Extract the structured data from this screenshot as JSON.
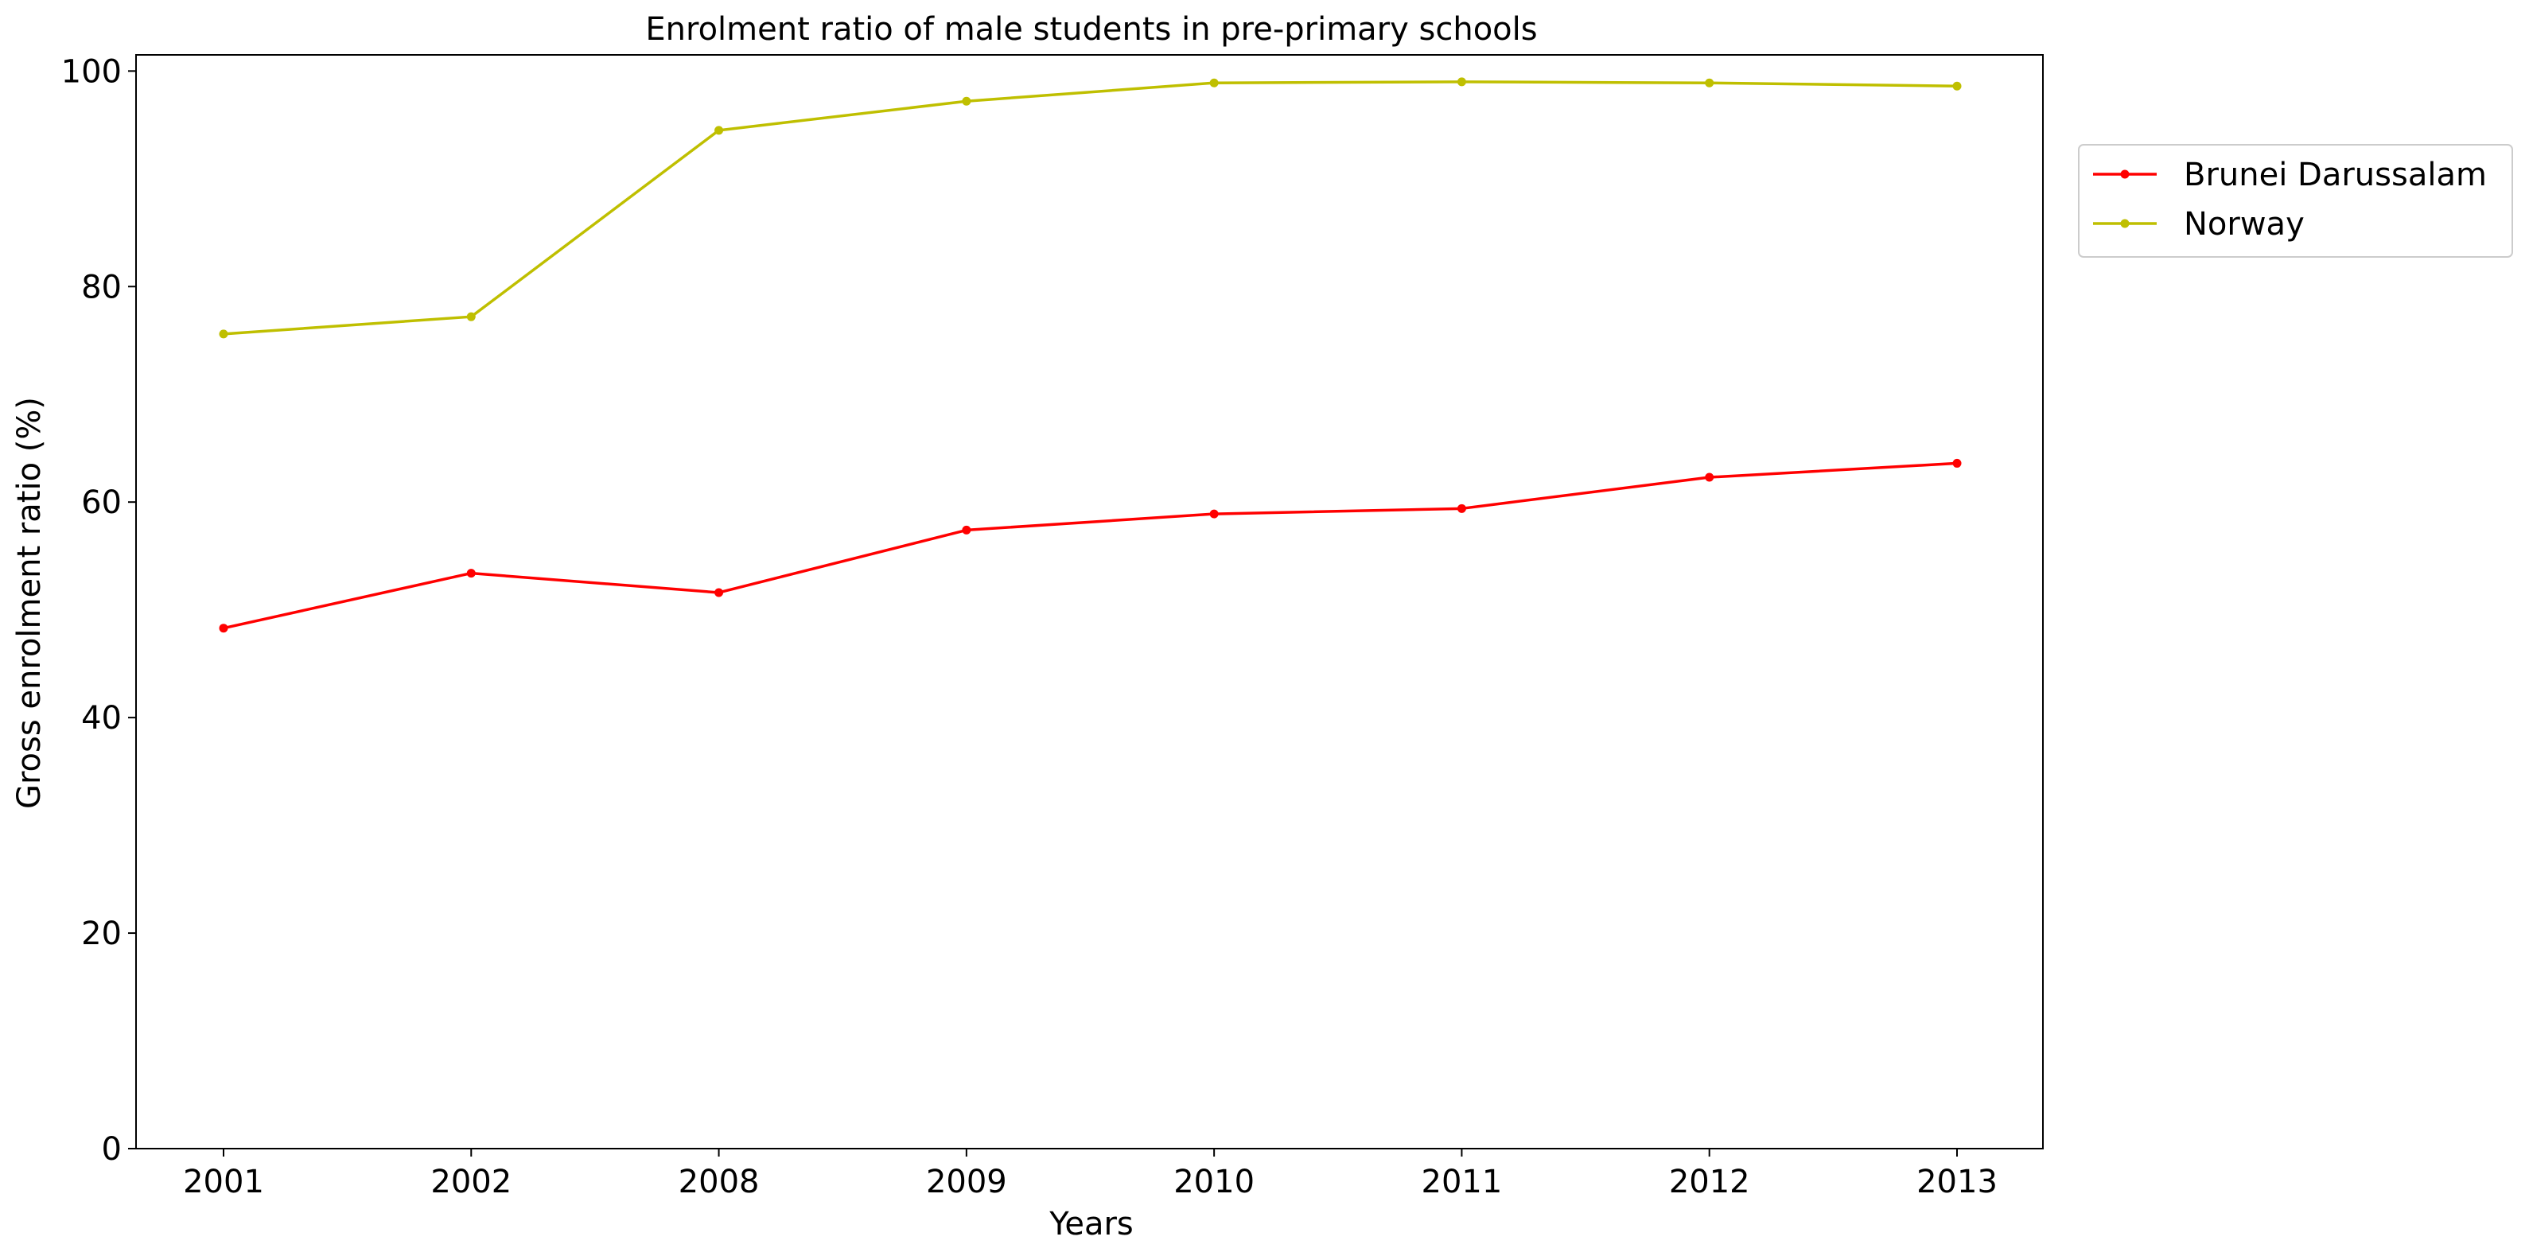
{
  "chart_data": {
    "type": "line",
    "title": "Enrolment ratio of male students in pre-primary schools",
    "xlabel": "Years",
    "ylabel": "Gross enrolment ratio (%)",
    "categories": [
      "2001",
      "2002",
      "2008",
      "2009",
      "2010",
      "2011",
      "2012",
      "2013"
    ],
    "yticks": [
      "0",
      "20",
      "40",
      "60",
      "80",
      "100"
    ],
    "ylim": [
      0,
      101.5
    ],
    "grid": false,
    "legend_position": "outside-right-top",
    "series": [
      {
        "name": "Brunei Darussalam",
        "color": "#ff0000",
        "values": [
          48.3,
          53.4,
          51.6,
          57.4,
          58.9,
          59.4,
          62.3,
          63.6
        ]
      },
      {
        "name": "Norway",
        "color": "#bfbf00",
        "values": [
          75.6,
          77.2,
          94.5,
          97.2,
          98.9,
          99.0,
          98.9,
          98.6
        ]
      }
    ]
  }
}
